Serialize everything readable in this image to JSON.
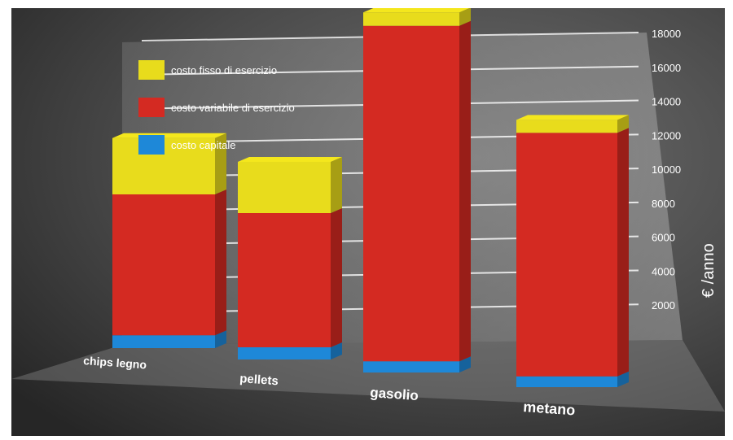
{
  "chart_data": {
    "type": "bar",
    "stacked": true,
    "categories": [
      "chips legno",
      "pellets",
      "gasolio",
      "metano"
    ],
    "series": [
      {
        "name": "costo capitale",
        "color": "#1e88d8",
        "values": [
          500,
          500,
          500,
          500
        ]
      },
      {
        "name": "costo variabile di esercizio",
        "color": "#d42a22",
        "values": [
          5500,
          5500,
          15000,
          11300
        ]
      },
      {
        "name": "costo fisso di esercizio",
        "color": "#e8dc1c",
        "values": [
          2200,
          2100,
          600,
          600
        ]
      }
    ],
    "ylabel": "€ /anno",
    "ylim": [
      0,
      18000
    ],
    "yticks": [
      2000,
      4000,
      6000,
      8000,
      10000,
      12000,
      14000,
      16000,
      18000
    ],
    "grid": true,
    "legend_position": "top-left",
    "background_color": "#4a4a4a"
  }
}
